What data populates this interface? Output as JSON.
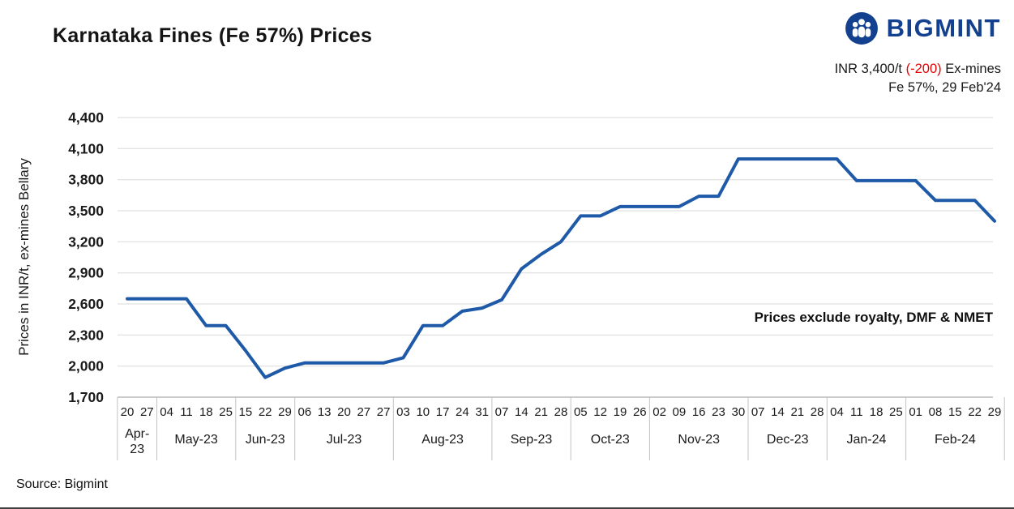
{
  "branding": {
    "logo_text": "BIGMINT",
    "logo_icon": "people-circle-icon",
    "brand_color": "#14418f",
    "price_value": "INR 3,400/t",
    "price_change": "(-200)",
    "price_change_color": "#e60000",
    "price_suffix": "Ex-mines",
    "price_detail": "Fe 57%, 29 Feb'24"
  },
  "chart_data": {
    "type": "line",
    "title": "Karnataka Fines (Fe 57%) Prices",
    "xlabel": "",
    "ylabel": "Prices in INR/t, ex-mines Bellary",
    "ylim": [
      1700,
      4400
    ],
    "ytick_step": 300,
    "grid": true,
    "legend": "none",
    "line_color": "#1e5aa7",
    "grid_color": "#dadada",
    "annotation": "Prices exclude royalty, DMF & NMET",
    "months": [
      {
        "label": "Apr-23",
        "days": [
          "20",
          "27"
        ]
      },
      {
        "label": "May-23",
        "days": [
          "04",
          "11",
          "18",
          "25"
        ]
      },
      {
        "label": "Jun-23",
        "days": [
          "15",
          "22",
          "29"
        ]
      },
      {
        "label": "Jul-23",
        "days": [
          "06",
          "13",
          "20",
          "27",
          "27"
        ]
      },
      {
        "label": "Aug-23",
        "days": [
          "03",
          "10",
          "17",
          "24",
          "31"
        ]
      },
      {
        "label": "Sep-23",
        "days": [
          "07",
          "14",
          "21",
          "28"
        ]
      },
      {
        "label": "Oct-23",
        "days": [
          "05",
          "12",
          "19",
          "26"
        ]
      },
      {
        "label": "Nov-23",
        "days": [
          "02",
          "09",
          "16",
          "23",
          "30"
        ]
      },
      {
        "label": "Dec-23",
        "days": [
          "07",
          "14",
          "21",
          "28"
        ]
      },
      {
        "label": "Jan-24",
        "days": [
          "04",
          "11",
          "18",
          "25"
        ]
      },
      {
        "label": "Feb-24",
        "days": [
          "01",
          "08",
          "15",
          "22",
          "29"
        ]
      }
    ],
    "values": [
      2650,
      2650,
      2650,
      2650,
      2390,
      2390,
      2150,
      1890,
      1980,
      2030,
      2030,
      2030,
      2030,
      2030,
      2080,
      2390,
      2390,
      2530,
      2560,
      2640,
      2940,
      3080,
      3200,
      3450,
      3450,
      3540,
      3540,
      3540,
      3540,
      3640,
      3640,
      4000,
      4000,
      4000,
      4000,
      4000,
      4000,
      3790,
      3790,
      3790,
      3790,
      3600,
      3600,
      3600,
      3400
    ]
  },
  "footer": {
    "source": "Source: Bigmint"
  }
}
